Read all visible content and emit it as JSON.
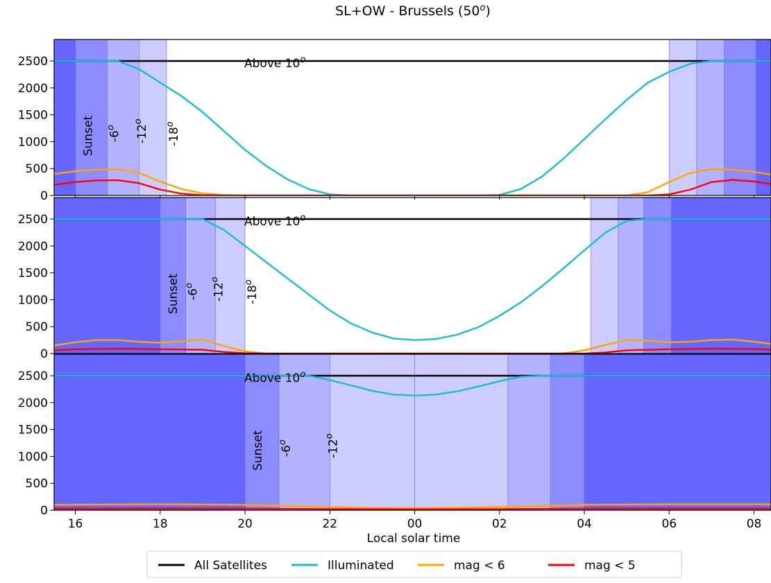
{
  "chart_data": {
    "type": "line",
    "title": "SL+OW - Brussels (50",
    "title_degree": "o",
    "title_suffix": ")",
    "xlabel": "Local solar time",
    "ylabel": "",
    "x_unit": "hours",
    "xlim": [
      15.5,
      32.4
    ],
    "ylim": [
      0,
      2900
    ],
    "x_ticks": [
      16,
      18,
      20,
      22,
      24,
      26,
      28,
      30,
      32
    ],
    "x_tick_labels": [
      "16",
      "18",
      "20",
      "22",
      "00",
      "02",
      "04",
      "06",
      "08"
    ],
    "y_ticks": [
      0,
      500,
      1000,
      1500,
      2000,
      2500
    ],
    "y_tick_labels": [
      "0",
      "500",
      "1000",
      "1500",
      "2000",
      "2500"
    ],
    "grid": false,
    "legend_position": "bottom-center",
    "series_colors": {
      "All Satellites": "#000000",
      "Illuminated": "#17becf",
      "mag < 6": "#ffa500",
      "mag < 5": "#ff0000"
    },
    "shade_colors": [
      "#6666ff",
      "#8c8cff",
      "#b3b3ff",
      "#ccccff"
    ],
    "panels": [
      {
        "annotations": {
          "above": "Above 10",
          "above_sup": "o",
          "sunset": "Sunset",
          "t6": "-6",
          "t12": "-12",
          "t18": "-18",
          "deg": "o"
        },
        "twilight_hours": {
          "sunset": 16.0,
          "civil": 16.75,
          "nautical": 17.5,
          "astronomical": 18.15,
          "astro_end": 30.0,
          "nautical_end": 30.65,
          "civil_end": 31.3,
          "sunrise": 32.05
        },
        "series": [
          {
            "name": "All Satellites",
            "x": [
              15.5,
              32.4
            ],
            "y": [
              2500,
              2500
            ]
          },
          {
            "name": "Illuminated",
            "x": [
              15.5,
              16.0,
              16.5,
              17.0,
              17.5,
              18.0,
              18.5,
              19.0,
              19.5,
              20.0,
              20.5,
              21.0,
              21.5,
              22.0,
              22.5,
              23.0,
              24.0,
              25.0,
              25.5,
              26.0,
              26.5,
              27.0,
              27.5,
              28.0,
              28.5,
              29.0,
              29.5,
              30.0,
              30.5,
              31.0,
              31.5,
              32.0,
              32.4
            ],
            "y": [
              2500,
              2500,
              2500,
              2500,
              2350,
              2100,
              1850,
              1550,
              1200,
              850,
              550,
              300,
              120,
              20,
              0,
              0,
              0,
              0,
              0,
              10,
              120,
              350,
              680,
              1050,
              1420,
              1780,
              2100,
              2300,
              2450,
              2500,
              2500,
              2500,
              2500
            ]
          },
          {
            "name": "mag < 6",
            "x": [
              15.5,
              16.0,
              16.5,
              17.0,
              17.5,
              18.0,
              18.5,
              19.0,
              19.5,
              20.0,
              29.0,
              29.5,
              30.0,
              30.5,
              31.0,
              31.5,
              32.0,
              32.4
            ],
            "y": [
              400,
              450,
              480,
              490,
              420,
              260,
              120,
              40,
              10,
              0,
              0,
              60,
              250,
              420,
              490,
              480,
              440,
              390
            ]
          },
          {
            "name": "mag < 5",
            "x": [
              15.5,
              16.0,
              16.5,
              17.0,
              17.5,
              18.0,
              18.5,
              19.0,
              19.5,
              20.0,
              29.5,
              30.0,
              30.5,
              31.0,
              31.5,
              32.0,
              32.4
            ],
            "y": [
              200,
              250,
              280,
              285,
              230,
              110,
              35,
              5,
              0,
              0,
              0,
              20,
              110,
              250,
              290,
              260,
              210
            ]
          }
        ]
      },
      {
        "annotations": {
          "above": "Above 10",
          "above_sup": "o",
          "sunset": "Sunset",
          "t6": "-6",
          "t12": "-12",
          "t18": "-18",
          "deg": "o"
        },
        "twilight_hours": {
          "sunset": 18.0,
          "civil": 18.6,
          "nautical": 19.3,
          "astronomical": 20.0,
          "astro_end": 28.15,
          "nautical_end": 28.8,
          "civil_end": 29.4,
          "sunrise": 30.05
        },
        "series": [
          {
            "name": "All Satellites",
            "x": [
              15.5,
              32.4
            ],
            "y": [
              2500,
              2500
            ]
          },
          {
            "name": "Illuminated",
            "x": [
              15.5,
              19.0,
              19.5,
              20.0,
              20.5,
              21.0,
              21.5,
              22.0,
              22.5,
              23.0,
              23.5,
              24.0,
              24.5,
              25.0,
              25.5,
              26.0,
              26.5,
              27.0,
              27.5,
              28.0,
              28.5,
              29.0,
              29.5,
              32.4
            ],
            "y": [
              2500,
              2500,
              2300,
              2000,
              1700,
              1400,
              1100,
              800,
              560,
              390,
              280,
              250,
              270,
              350,
              490,
              700,
              950,
              1250,
              1580,
              1920,
              2250,
              2470,
              2500,
              2500
            ]
          },
          {
            "name": "mag < 6",
            "x": [
              15.5,
              16.0,
              16.5,
              17.0,
              17.5,
              18.0,
              18.5,
              19.0,
              19.5,
              20.0,
              20.5,
              27.5,
              28.0,
              28.5,
              29.0,
              29.5,
              30.0,
              30.5,
              31.0,
              31.5,
              32.0,
              32.4
            ],
            "y": [
              150,
              210,
              250,
              250,
              220,
              200,
              230,
              260,
              140,
              40,
              0,
              0,
              60,
              160,
              250,
              240,
              210,
              220,
              250,
              260,
              220,
              180
            ]
          },
          {
            "name": "mag < 5",
            "x": [
              15.5,
              16.0,
              17.0,
              18.0,
              19.0,
              19.5,
              20.0,
              20.5,
              28.0,
              28.5,
              29.0,
              30.0,
              31.0,
              32.0,
              32.4
            ],
            "y": [
              60,
              80,
              90,
              80,
              70,
              30,
              5,
              0,
              0,
              20,
              60,
              80,
              90,
              85,
              70
            ]
          }
        ]
      },
      {
        "annotations": {
          "above": "Above 10",
          "above_sup": "o",
          "sunset": "Sunset",
          "t6": "-6",
          "t12": "-12",
          "deg": "o"
        },
        "twilight_hours": {
          "sunset": 20.0,
          "civil": 20.8,
          "nautical": 22.0,
          "midnight": 24.0,
          "nautical_end": 26.2,
          "civil_end": 27.2,
          "sunrise": 28.0
        },
        "series": [
          {
            "name": "All Satellites",
            "x": [
              15.5,
              32.4
            ],
            "y": [
              2500,
              2500
            ]
          },
          {
            "name": "Illuminated",
            "x": [
              15.5,
              21.5,
              22.0,
              22.5,
              23.0,
              23.5,
              24.0,
              24.5,
              25.0,
              25.5,
              26.0,
              26.5,
              27.0,
              32.4
            ],
            "y": [
              2500,
              2500,
              2420,
              2320,
              2220,
              2150,
              2130,
              2150,
              2210,
              2300,
              2400,
              2480,
              2500,
              2500
            ]
          },
          {
            "name": "mag < 6",
            "x": [
              15.5,
              18.0,
              20.0,
              21.0,
              22.0,
              23.0,
              24.0,
              25.0,
              26.0,
              27.0,
              28.0,
              30.0,
              32.4
            ],
            "y": [
              100,
              110,
              100,
              80,
              60,
              40,
              40,
              45,
              60,
              80,
              100,
              110,
              110
            ]
          },
          {
            "name": "mag < 5",
            "x": [
              15.5,
              20.0,
              22.0,
              24.0,
              26.0,
              28.0,
              32.4
            ],
            "y": [
              30,
              30,
              20,
              15,
              20,
              30,
              30
            ]
          }
        ]
      }
    ]
  },
  "legend": {
    "items": [
      {
        "label": "All Satellites",
        "color": "#000000"
      },
      {
        "label": "Illuminated",
        "color": "#17becf"
      },
      {
        "label": "mag < 6",
        "color": "#ffa500"
      },
      {
        "label": "mag < 5",
        "color": "#ff0000"
      }
    ]
  }
}
